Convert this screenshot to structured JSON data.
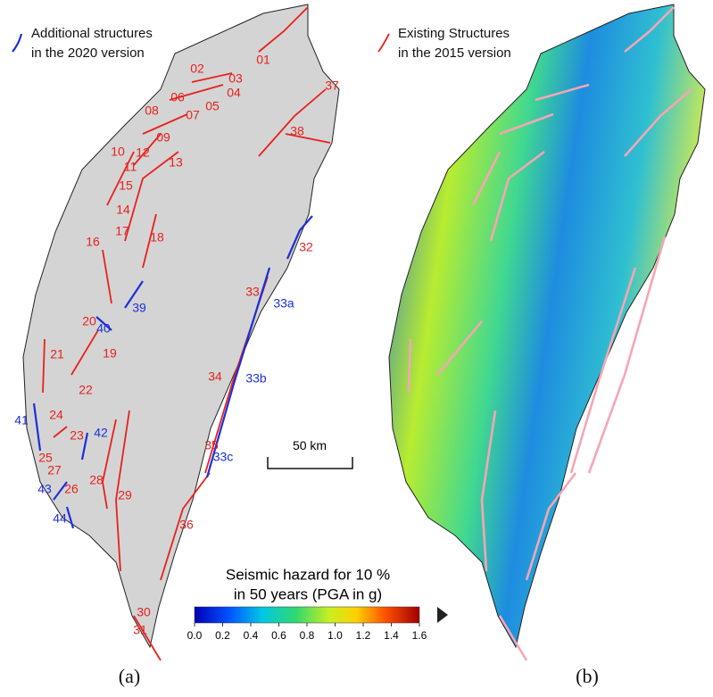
{
  "panel_a": {
    "legend": [
      "Additional structures",
      "in the 2020 version"
    ],
    "faults_2015": {
      "color": "#e8201c",
      "labels": [
        "01",
        "02",
        "03",
        "04",
        "05",
        "06",
        "07",
        "08",
        "09",
        "10",
        "11",
        "12",
        "13",
        "14",
        "15",
        "16",
        "17",
        "18",
        "19",
        "20",
        "21",
        "22",
        "23",
        "24",
        "25",
        "26",
        "27",
        "28",
        "29",
        "30",
        "31",
        "32",
        "33",
        "34",
        "35",
        "36",
        "37",
        "38"
      ]
    },
    "faults_2020": {
      "color": "#1c2fd8",
      "labels": [
        "33a",
        "33b",
        "33c",
        "39",
        "40",
        "41",
        "42",
        "43",
        "44"
      ]
    },
    "scale_bar": "50 km",
    "label": "(a)"
  },
  "panel_b": {
    "legend": [
      "Existing Structures",
      "in the 2015 version"
    ],
    "colorbar": {
      "title": [
        "Seismic hazard for 10 %",
        "in 50 years (PGA in g)"
      ],
      "lim": [
        0,
        1.6
      ],
      "ticks": [
        {
          "value": 0,
          "label": "0.0"
        },
        0.2,
        0.4,
        0.6,
        0.8,
        {
          "value": 1,
          "label": "1.0"
        },
        1.2,
        1.4,
        1.6
      ]
    },
    "label": "(b)"
  }
}
